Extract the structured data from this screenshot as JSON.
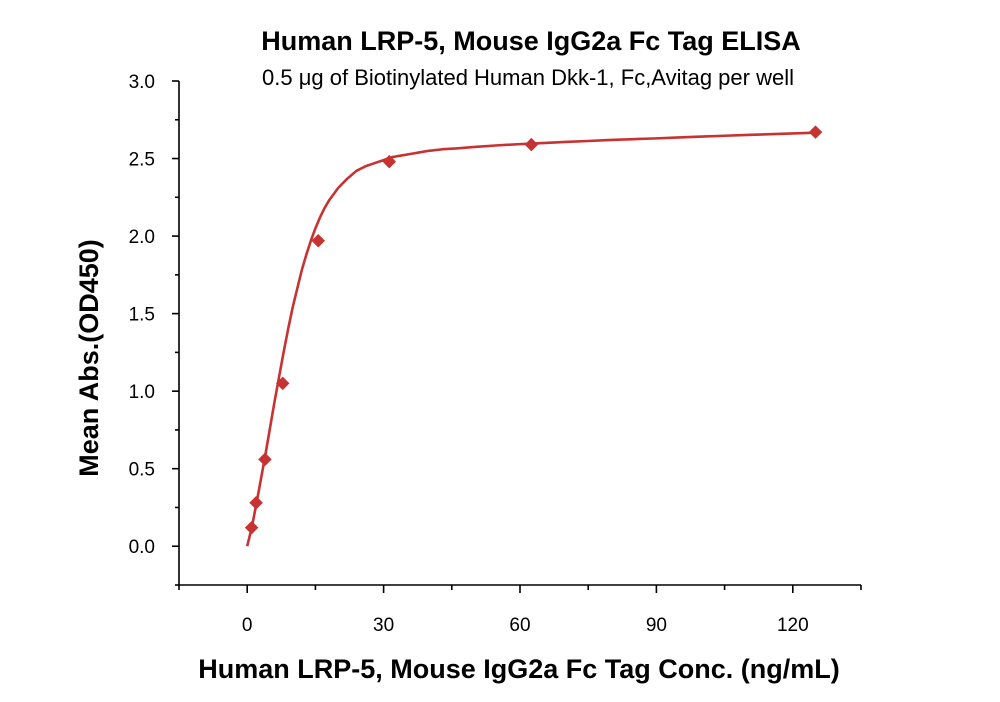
{
  "chart_data": {
    "type": "scatter",
    "title": "Human LRP-5, Mouse IgG2a Fc Tag ELISA",
    "subtitle": "0.5 μg of Biotinylated Human Dkk-1, Fc,Avitag per well",
    "xlabel": "Human LRP-5, Mouse IgG2a Fc Tag Conc. (ng/mL)",
    "ylabel": "Mean Abs.(OD450)",
    "xlim": [
      -15,
      135
    ],
    "ylim": [
      -0.25,
      3.0
    ],
    "x_ticks": [
      0,
      30,
      60,
      90,
      120
    ],
    "y_ticks": [
      0.0,
      0.5,
      1.0,
      1.5,
      2.0,
      2.5,
      3.0
    ],
    "x_tick_labels": [
      "0",
      "30",
      "60",
      "90",
      "120"
    ],
    "y_tick_labels": [
      "0.0",
      "0.5",
      "1.0",
      "1.5",
      "2.0",
      "2.5",
      "3.0"
    ],
    "series": [
      {
        "name": "Human LRP-5, Mouse IgG2a Fc Tag",
        "marker": "diamond",
        "color": "#c83232",
        "x": [
          0.977,
          1.953,
          3.906,
          7.813,
          15.625,
          31.25,
          62.5,
          125
        ],
        "y": [
          0.12,
          0.28,
          0.56,
          1.05,
          1.97,
          2.48,
          2.59,
          2.67
        ]
      }
    ],
    "fit_curve": {
      "color": "#c83232",
      "x": [
        0,
        1,
        2,
        3,
        4,
        5,
        6,
        7,
        8,
        9,
        10,
        11,
        12,
        13,
        14,
        15,
        16,
        17,
        18,
        19,
        20,
        22,
        24,
        26,
        28,
        30,
        32,
        34,
        36,
        38,
        40,
        43,
        46,
        50,
        55,
        60,
        65,
        70,
        75,
        80,
        85,
        90,
        95,
        100,
        105,
        110,
        115,
        120,
        125
      ],
      "y": [
        0.0,
        0.12,
        0.27,
        0.43,
        0.59,
        0.76,
        0.93,
        1.09,
        1.25,
        1.4,
        1.54,
        1.66,
        1.78,
        1.88,
        1.97,
        2.05,
        2.12,
        2.18,
        2.23,
        2.27,
        2.31,
        2.37,
        2.42,
        2.45,
        2.47,
        2.49,
        2.51,
        2.52,
        2.53,
        2.54,
        2.55,
        2.56,
        2.565,
        2.575,
        2.585,
        2.593,
        2.6,
        2.607,
        2.613,
        2.62,
        2.625,
        2.63,
        2.636,
        2.642,
        2.647,
        2.652,
        2.657,
        2.662,
        2.667
      ]
    }
  }
}
